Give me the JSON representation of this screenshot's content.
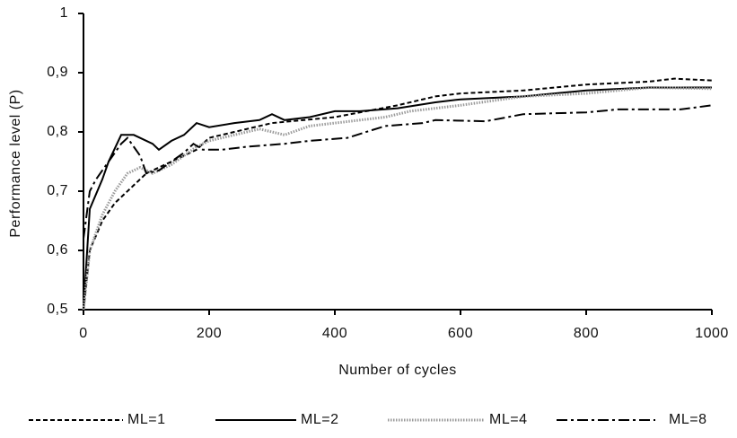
{
  "chart_data": {
    "type": "line",
    "x_label": "Number of cycles",
    "y_label": "Performance level  (P)",
    "xlim": [
      0,
      1000
    ],
    "xticks": [
      0,
      200,
      400,
      600,
      800,
      1000
    ],
    "ylim": [
      0.5,
      1
    ],
    "yticks": [
      {
        "value": 0.5,
        "label": "0,5"
      },
      {
        "value": 0.6,
        "label": "0,6"
      },
      {
        "value": 0.7,
        "label": "0,7"
      },
      {
        "value": 0.8,
        "label": "0,8"
      },
      {
        "value": 0.9,
        "label": "0,9"
      },
      1
    ],
    "grid": false,
    "legend": "bottom",
    "series": [
      {
        "name": "ML=1",
        "color": "#000000",
        "style": "dashed",
        "x": [
          0,
          10,
          30,
          50,
          80,
          100,
          140,
          180,
          200,
          240,
          300,
          400,
          500,
          560,
          600,
          700,
          800,
          900,
          940,
          1000
        ],
        "values": [
          0.5,
          0.6,
          0.65,
          0.68,
          0.71,
          0.73,
          0.75,
          0.77,
          0.79,
          0.8,
          0.815,
          0.825,
          0.845,
          0.86,
          0.865,
          0.87,
          0.88,
          0.885,
          0.89,
          0.887
        ]
      },
      {
        "name": "ML=2",
        "color": "#000000",
        "style": "solid",
        "x": [
          0,
          10,
          30,
          40,
          60,
          80,
          110,
          120,
          140,
          160,
          180,
          200,
          240,
          280,
          300,
          320,
          360,
          400,
          440,
          500,
          560,
          600,
          700,
          800,
          900,
          1000
        ],
        "values": [
          0.5,
          0.67,
          0.72,
          0.75,
          0.795,
          0.795,
          0.78,
          0.77,
          0.785,
          0.795,
          0.815,
          0.808,
          0.815,
          0.82,
          0.83,
          0.82,
          0.825,
          0.835,
          0.835,
          0.84,
          0.85,
          0.855,
          0.86,
          0.87,
          0.875,
          0.875
        ]
      },
      {
        "name": "ML=4",
        "color": "#9a9a9a",
        "style": "dotted",
        "x": [
          0,
          10,
          30,
          50,
          70,
          90,
          110,
          140,
          180,
          200,
          240,
          280,
          320,
          360,
          400,
          440,
          480,
          520,
          600,
          700,
          800,
          900,
          1000
        ],
        "values": [
          0.5,
          0.6,
          0.66,
          0.7,
          0.73,
          0.74,
          0.73,
          0.745,
          0.775,
          0.785,
          0.795,
          0.805,
          0.795,
          0.81,
          0.815,
          0.82,
          0.825,
          0.835,
          0.845,
          0.86,
          0.865,
          0.875,
          0.873
        ]
      },
      {
        "name": "ML=8",
        "color": "#000000",
        "style": "dash-dot",
        "x": [
          0,
          10,
          20,
          40,
          60,
          70,
          90,
          100,
          120,
          140,
          160,
          175,
          190,
          220,
          260,
          320,
          360,
          420,
          480,
          540,
          560,
          640,
          700,
          800,
          850,
          950,
          1000
        ],
        "values": [
          0.62,
          0.7,
          0.72,
          0.75,
          0.78,
          0.79,
          0.76,
          0.73,
          0.735,
          0.75,
          0.765,
          0.78,
          0.77,
          0.77,
          0.775,
          0.78,
          0.785,
          0.79,
          0.81,
          0.815,
          0.82,
          0.818,
          0.83,
          0.833,
          0.838,
          0.838,
          0.845
        ]
      }
    ]
  }
}
